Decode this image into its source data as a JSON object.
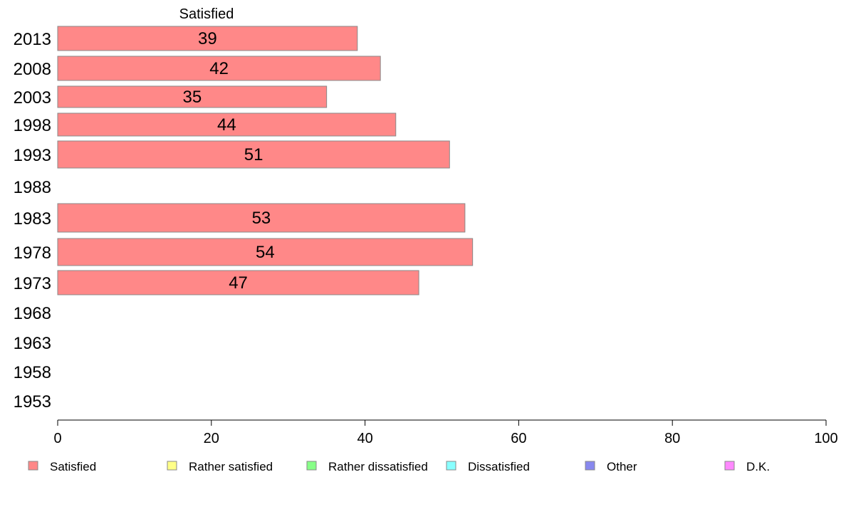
{
  "chart_data": {
    "type": "bar",
    "orientation": "horizontal",
    "title": "Satisfied",
    "categories": [
      "2013",
      "2008",
      "2003",
      "1998",
      "1993",
      "1988",
      "1983",
      "1978",
      "1973",
      "1968",
      "1963",
      "1958",
      "1953"
    ],
    "series": [
      {
        "name": "Satisfied",
        "color": "#ff8888",
        "values": [
          39,
          42,
          35,
          44,
          51,
          null,
          53,
          54,
          47,
          null,
          null,
          null,
          null
        ],
        "labels": [
          "39",
          "42",
          "35",
          "44",
          "51",
          "",
          "53",
          "54",
          "47",
          "",
          "",
          "",
          ""
        ]
      }
    ],
    "xlim": [
      0,
      100
    ],
    "xticks": [
      "0",
      "20",
      "40",
      "60",
      "80",
      "100"
    ],
    "grid": false,
    "legend": {
      "placement": "bottom",
      "items": [
        {
          "label": "Satisfied",
          "color": "#ff8888"
        },
        {
          "label": "Rather satisfied",
          "color": "#ffff88"
        },
        {
          "label": "Rather dissatisfied",
          "color": "#88ff88"
        },
        {
          "label": "Dissatisfied",
          "color": "#88ffff"
        },
        {
          "label": "Other",
          "color": "#8888ee"
        },
        {
          "label": "D.K.",
          "color": "#ff88ff"
        }
      ]
    }
  }
}
